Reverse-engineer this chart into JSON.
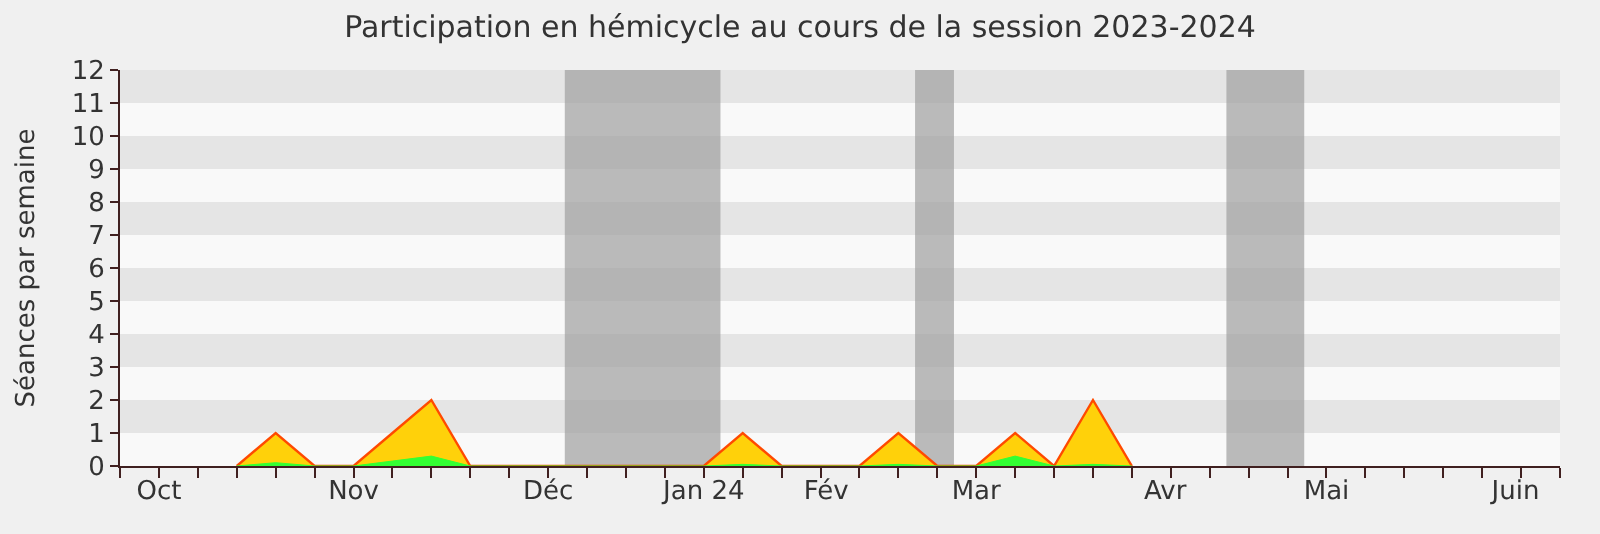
{
  "chart_data": {
    "type": "area",
    "title": "Participation en hémicycle au cours de la session 2023-2024",
    "ylabel": "Séances par semaine",
    "x": [
      "2023-10-20",
      "2023-10-27",
      "2023-11-03",
      "2023-11-10",
      "2023-11-17",
      "2023-11-24",
      "2023-12-01",
      "2024-01-12",
      "2024-01-19",
      "2024-01-26",
      "2024-02-09",
      "2024-02-16",
      "2024-02-23",
      "2024-03-01",
      "2024-03-08",
      "2024-03-15",
      "2024-03-22",
      "2024-03-29"
    ],
    "series": [
      {
        "color": "#ffd10a",
        "values": [
          0,
          1,
          0,
          0,
          1,
          2,
          0,
          0,
          1,
          0,
          0,
          1,
          0,
          0,
          1,
          0,
          2,
          0
        ]
      },
      {
        "color": "#33ff33",
        "values": [
          0,
          0.1,
          0,
          0,
          0.15,
          0.3,
          0,
          0,
          0.05,
          0,
          0,
          0.05,
          0,
          0,
          0.3,
          0,
          0.05,
          0
        ]
      }
    ],
    "xlim": [
      "2023-09-29",
      "2024-06-14"
    ],
    "xticks": [
      {
        "value": "2023-10-06",
        "label": "Oct"
      },
      {
        "value": "2023-11-10",
        "label": "Nov"
      },
      {
        "value": "2023-12-15",
        "label": "Déc"
      },
      {
        "value": "2024-01-12",
        "label": "Jan 24"
      },
      {
        "value": "2024-02-03",
        "label": "Fév"
      },
      {
        "value": "2024-03-01",
        "label": "Mar"
      },
      {
        "value": "2024-04-04",
        "label": "Avr"
      },
      {
        "value": "2024-05-03",
        "label": "Mai"
      },
      {
        "value": "2024-06-06",
        "label": "Juin"
      }
    ],
    "ylim": [
      0,
      12
    ],
    "yticks": [
      0,
      1,
      2,
      3,
      4,
      5,
      6,
      7,
      8,
      9,
      10,
      11,
      12
    ],
    "bands": [
      {
        "axis": "x",
        "from": "2023-12-18",
        "to": "2024-01-15",
        "color": "#a0a0a0"
      },
      {
        "axis": "x",
        "from": "2024-02-19",
        "to": "2024-02-26",
        "color": "#a0a0a0"
      },
      {
        "axis": "x",
        "from": "2024-04-15",
        "to": "2024-04-29",
        "color": "#a0a0a0"
      }
    ],
    "grid": false
  }
}
